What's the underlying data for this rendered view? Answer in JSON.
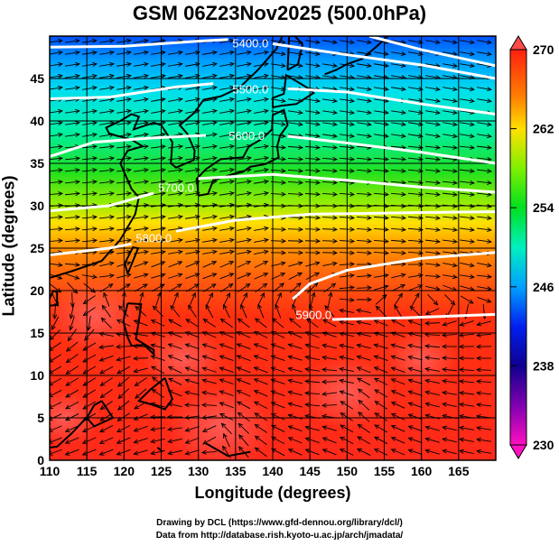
{
  "title": "GSM 06Z23Nov2025 (500.0hPa)",
  "x_axis": {
    "label": "Longitude (degrees)",
    "min": 110,
    "max": 170,
    "ticks": [
      "110",
      "115",
      "120",
      "125",
      "130",
      "135",
      "140",
      "145",
      "150",
      "155",
      "160",
      "165"
    ]
  },
  "y_axis": {
    "label": "Latitude  (degrees)",
    "min": 0,
    "max": 50,
    "ticks": [
      "0",
      "5",
      "10",
      "15",
      "20",
      "25",
      "30",
      "35",
      "40",
      "45"
    ]
  },
  "colorbar": {
    "unit_range": [
      230,
      270
    ],
    "ticks": [
      "270",
      "262",
      "254",
      "246",
      "238",
      "230"
    ]
  },
  "contours": [
    {
      "value": "5400.0"
    },
    {
      "value": "5500.0"
    },
    {
      "value": "5600.0"
    },
    {
      "value": "5700.0"
    },
    {
      "value": "5800.0"
    },
    {
      "value": "5900.0"
    }
  ],
  "credits": {
    "line1": "Drawing by DCL (https://www.gfd-dennou.org/library/dcl/)",
    "line2": "Data from http://database.rish.kyoto-u.ac.jp/arch/jmadata/"
  }
}
